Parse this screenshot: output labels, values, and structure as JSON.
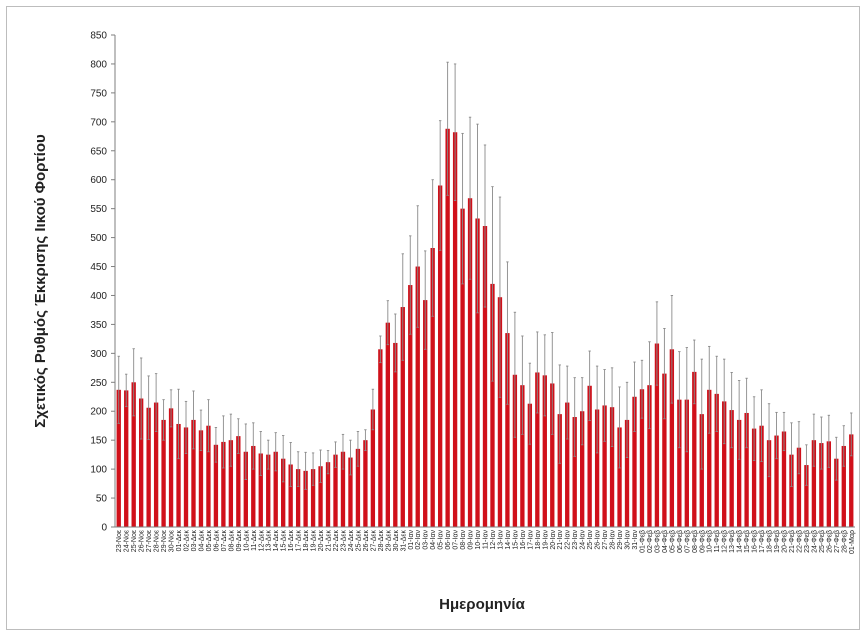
{
  "chart_data": {
    "type": "bar",
    "title": "",
    "xlabel": "Ημερομηνία",
    "ylabel": "Σχετικός Ρυθμός Έκκρισης Ιικού Φορτίου",
    "ylim": [
      0,
      850
    ],
    "yticks": [
      0,
      50,
      100,
      150,
      200,
      250,
      300,
      350,
      400,
      450,
      500,
      550,
      600,
      650,
      700,
      750,
      800,
      850
    ],
    "grid": false,
    "legend": "none",
    "bar_color": "#d0101a",
    "error_bar_color": "#8a8a8a",
    "categories": [
      "23-Νοε",
      "24-Νοε",
      "25-Νοε",
      "26-Νοε",
      "27-Νοε",
      "28-Νοε",
      "29-Νοε",
      "30-Νοε",
      "01-Δεκ",
      "02-Δεκ",
      "03-Δεκ",
      "04-Δεκ",
      "05-Δεκ",
      "06-Δεκ",
      "07-Δεκ",
      "08-Δεκ",
      "09-Δεκ",
      "10-Δεκ",
      "11-Δεκ",
      "12-Δεκ",
      "13-Δεκ",
      "14-Δεκ",
      "15-Δεκ",
      "16-Δεκ",
      "17-Δεκ",
      "18-Δεκ",
      "19-Δεκ",
      "20-Δεκ",
      "21-Δεκ",
      "22-Δεκ",
      "23-Δεκ",
      "24-Δεκ",
      "25-Δεκ",
      "26-Δεκ",
      "27-Δεκ",
      "28-Δεκ",
      "29-Δεκ",
      "30-Δεκ",
      "31-Δεκ",
      "01-Ιαν",
      "02-Ιαν",
      "03-Ιαν",
      "04-Ιαν",
      "05-Ιαν",
      "06-Ιαν",
      "07-Ιαν",
      "08-Ιαν",
      "09-Ιαν",
      "10-Ιαν",
      "11-Ιαν",
      "12-Ιαν",
      "13-Ιαν",
      "14-Ιαν",
      "15-Ιαν",
      "16-Ιαν",
      "17-Ιαν",
      "18-Ιαν",
      "19-Ιαν",
      "20-Ιαν",
      "21-Ιαν",
      "22-Ιαν",
      "23-Ιαν",
      "24-Ιαν",
      "25-Ιαν",
      "26-Ιαν",
      "27-Ιαν",
      "28-Ιαν",
      "29-Ιαν",
      "30-Ιαν",
      "31-Ιαν",
      "01-Φεβ",
      "02-Φεβ",
      "03-Φεβ",
      "04-Φεβ",
      "05-Φεβ",
      "06-Φεβ",
      "07-Φεβ",
      "08-Φεβ",
      "09-Φεβ",
      "10-Φεβ",
      "11-Φεβ",
      "12-Φεβ",
      "13-Φεβ",
      "14-Φεβ",
      "15-Φεβ",
      "16-Φεβ",
      "17-Φεβ",
      "18-Φεβ",
      "19-Φεβ",
      "20-Φεβ",
      "21-Φεβ",
      "22-Φεβ",
      "23-Φεβ",
      "24-Φεβ",
      "25-Φεβ",
      "26-Φεβ",
      "27-Φεβ",
      "28-Φεβ",
      "01-Μαρ"
    ],
    "values": [
      237,
      236,
      250,
      222,
      206,
      215,
      185,
      205,
      178,
      172,
      185,
      167,
      175,
      142,
      147,
      150,
      157,
      130,
      140,
      127,
      125,
      130,
      118,
      108,
      100,
      97,
      100,
      105,
      112,
      125,
      130,
      120,
      135,
      150,
      203,
      307,
      353,
      318,
      380,
      418,
      450,
      392,
      482,
      590,
      688,
      682,
      550,
      568,
      533,
      520,
      420,
      397,
      335,
      263,
      245,
      213,
      267,
      262,
      248,
      195,
      215,
      190,
      200,
      244,
      203,
      210,
      207,
      172,
      185,
      225,
      238,
      245,
      317,
      265,
      307,
      220,
      220,
      268,
      195,
      237,
      230,
      217,
      202,
      185,
      197,
      170,
      175,
      150,
      158,
      165,
      125,
      137,
      107,
      150,
      145,
      148,
      118,
      140,
      160
    ],
    "errors": [
      58,
      28,
      58,
      70,
      55,
      50,
      35,
      32,
      60,
      45,
      50,
      35,
      45,
      30,
      45,
      45,
      30,
      48,
      40,
      38,
      25,
      33,
      40,
      38,
      30,
      32,
      28,
      28,
      20,
      22,
      30,
      30,
      30,
      18,
      35,
      23,
      38,
      50,
      92,
      85,
      105,
      85,
      118,
      112,
      115,
      118,
      130,
      140,
      163,
      140,
      168,
      173,
      123,
      108,
      85,
      70,
      70,
      70,
      88,
      85,
      63,
      68,
      58,
      60,
      75,
      62,
      68,
      70,
      65,
      60,
      50,
      75,
      72,
      78,
      93,
      83,
      90,
      55,
      95,
      75,
      65,
      73,
      65,
      68,
      60,
      55,
      62,
      63,
      40,
      33,
      55,
      45,
      35,
      45,
      45,
      45,
      37,
      35,
      37
    ]
  }
}
